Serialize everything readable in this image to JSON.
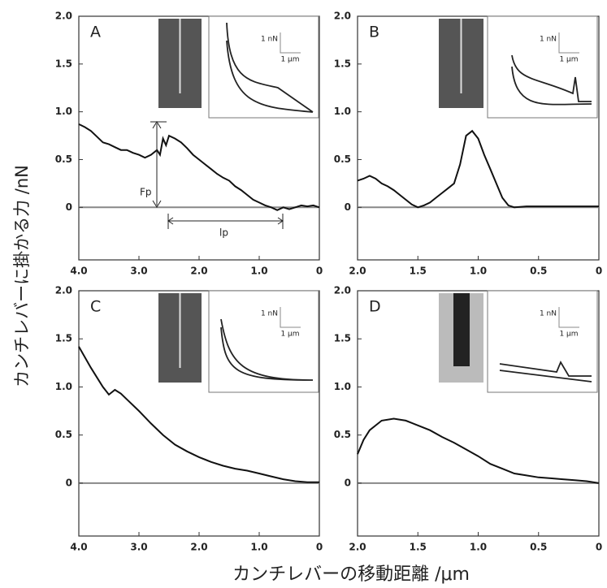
{
  "ylabel": "カンチレバーに掛かる力 /nN",
  "xlabel": "カンチレバーの移動距離 /μm",
  "chart_data": [
    {
      "type": "line",
      "label": "A",
      "color": "#111111",
      "x": [
        4.0,
        3.9,
        3.8,
        3.7,
        3.6,
        3.5,
        3.4,
        3.3,
        3.2,
        3.1,
        3.0,
        2.9,
        2.8,
        2.7,
        2.65,
        2.6,
        2.55,
        2.5,
        2.4,
        2.3,
        2.2,
        2.1,
        2.0,
        1.9,
        1.8,
        1.7,
        1.6,
        1.5,
        1.4,
        1.3,
        1.2,
        1.1,
        1.0,
        0.9,
        0.8,
        0.7,
        0.6,
        0.5,
        0.4,
        0.3,
        0.2,
        0.1,
        0.0
      ],
      "values": [
        0.87,
        0.84,
        0.8,
        0.74,
        0.68,
        0.66,
        0.63,
        0.6,
        0.6,
        0.57,
        0.55,
        0.52,
        0.55,
        0.6,
        0.55,
        0.72,
        0.65,
        0.75,
        0.72,
        0.68,
        0.62,
        0.55,
        0.5,
        0.45,
        0.4,
        0.35,
        0.31,
        0.28,
        0.22,
        0.18,
        0.13,
        0.08,
        0.05,
        0.02,
        0.0,
        -0.03,
        0.0,
        -0.02,
        0.0,
        0.02,
        0.01,
        0.02,
        0.0
      ],
      "xlim": [
        4.0,
        0
      ],
      "xticks": [
        {
          "value": 4,
          "label": "4.0"
        },
        {
          "value": 3,
          "label": "3.0"
        },
        {
          "value": 2,
          "label": "2.0"
        },
        {
          "value": 1,
          "label": "1.0"
        },
        0
      ],
      "ylim": [
        -0.55,
        2.0
      ],
      "yticks": [
        {
          "value": 2,
          "label": "2.0"
        },
        1.5,
        {
          "value": 1,
          "label": "1.0"
        },
        0.5,
        0
      ],
      "inset": {
        "y_scale": "1 nN",
        "x_scale": "1 μm"
      },
      "annotations": [
        "Fp",
        "lp"
      ]
    },
    {
      "type": "line",
      "label": "B",
      "color": "#111111",
      "x": [
        2.0,
        1.95,
        1.9,
        1.85,
        1.8,
        1.75,
        1.7,
        1.65,
        1.6,
        1.55,
        1.5,
        1.45,
        1.4,
        1.35,
        1.3,
        1.25,
        1.2,
        1.15,
        1.1,
        1.05,
        1.0,
        0.95,
        0.9,
        0.85,
        0.8,
        0.75,
        0.7,
        0.6,
        0.5,
        0.4,
        0.3,
        0.2,
        0.1,
        0.0
      ],
      "values": [
        0.28,
        0.3,
        0.33,
        0.3,
        0.25,
        0.22,
        0.18,
        0.13,
        0.08,
        0.03,
        0.0,
        0.02,
        0.05,
        0.1,
        0.15,
        0.2,
        0.25,
        0.45,
        0.75,
        0.8,
        0.72,
        0.55,
        0.4,
        0.25,
        0.1,
        0.02,
        0.0,
        0.01,
        0.01,
        0.01,
        0.01,
        0.01,
        0.01,
        0.01
      ],
      "xlim": [
        2.0,
        0
      ],
      "xticks": [
        {
          "value": 2,
          "label": "2.0"
        },
        1.5,
        {
          "value": 1,
          "label": "1.0"
        },
        0.5,
        0
      ],
      "ylim": [
        -0.55,
        2.0
      ],
      "yticks": [
        {
          "value": 2,
          "label": "2.0"
        },
        1.5,
        {
          "value": 1,
          "label": "1.0"
        },
        0.5,
        0
      ],
      "inset": {
        "y_scale": "1 nN",
        "x_scale": "1 μm"
      }
    },
    {
      "type": "line",
      "label": "C",
      "color": "#111111",
      "x": [
        4.0,
        3.8,
        3.6,
        3.5,
        3.4,
        3.3,
        3.2,
        3.0,
        2.8,
        2.6,
        2.4,
        2.2,
        2.0,
        1.8,
        1.6,
        1.4,
        1.2,
        1.0,
        0.8,
        0.6,
        0.4,
        0.2,
        0.0
      ],
      "values": [
        1.42,
        1.2,
        1.0,
        0.92,
        0.97,
        0.93,
        0.87,
        0.75,
        0.62,
        0.5,
        0.4,
        0.33,
        0.27,
        0.22,
        0.18,
        0.15,
        0.13,
        0.1,
        0.07,
        0.04,
        0.02,
        0.01,
        0.01
      ],
      "xlim": [
        4.0,
        0
      ],
      "xticks": [
        {
          "value": 4,
          "label": "4.0"
        },
        {
          "value": 3,
          "label": "3.0"
        },
        {
          "value": 2,
          "label": "2.0"
        },
        {
          "value": 1,
          "label": "1.0"
        },
        0
      ],
      "ylim": [
        -0.55,
        2.0
      ],
      "yticks": [
        {
          "value": 2,
          "label": "2.0"
        },
        1.5,
        {
          "value": 1,
          "label": "1.0"
        },
        0.5,
        0
      ],
      "inset": {
        "y_scale": "1 nN",
        "x_scale": "1 μm"
      }
    },
    {
      "type": "line",
      "label": "D",
      "color": "#111111",
      "x": [
        2.0,
        1.95,
        1.9,
        1.8,
        1.7,
        1.6,
        1.5,
        1.4,
        1.3,
        1.2,
        1.1,
        1.0,
        0.9,
        0.8,
        0.7,
        0.6,
        0.5,
        0.4,
        0.3,
        0.2,
        0.1,
        0.0
      ],
      "values": [
        0.3,
        0.45,
        0.55,
        0.65,
        0.67,
        0.65,
        0.6,
        0.55,
        0.48,
        0.42,
        0.35,
        0.28,
        0.2,
        0.15,
        0.1,
        0.08,
        0.06,
        0.05,
        0.04,
        0.03,
        0.02,
        0.0
      ],
      "xlim": [
        2.0,
        0
      ],
      "xticks": [
        {
          "value": 2,
          "label": "2.0"
        },
        1.5,
        {
          "value": 1,
          "label": "1.0"
        },
        0.5,
        0
      ],
      "ylim": [
        -0.55,
        2.0
      ],
      "yticks": [
        {
          "value": 2,
          "label": "2.0"
        },
        1.5,
        {
          "value": 1,
          "label": "1.0"
        },
        0.5,
        0
      ],
      "inset": {
        "y_scale": "1 nN",
        "x_scale": "1 μm"
      }
    }
  ]
}
